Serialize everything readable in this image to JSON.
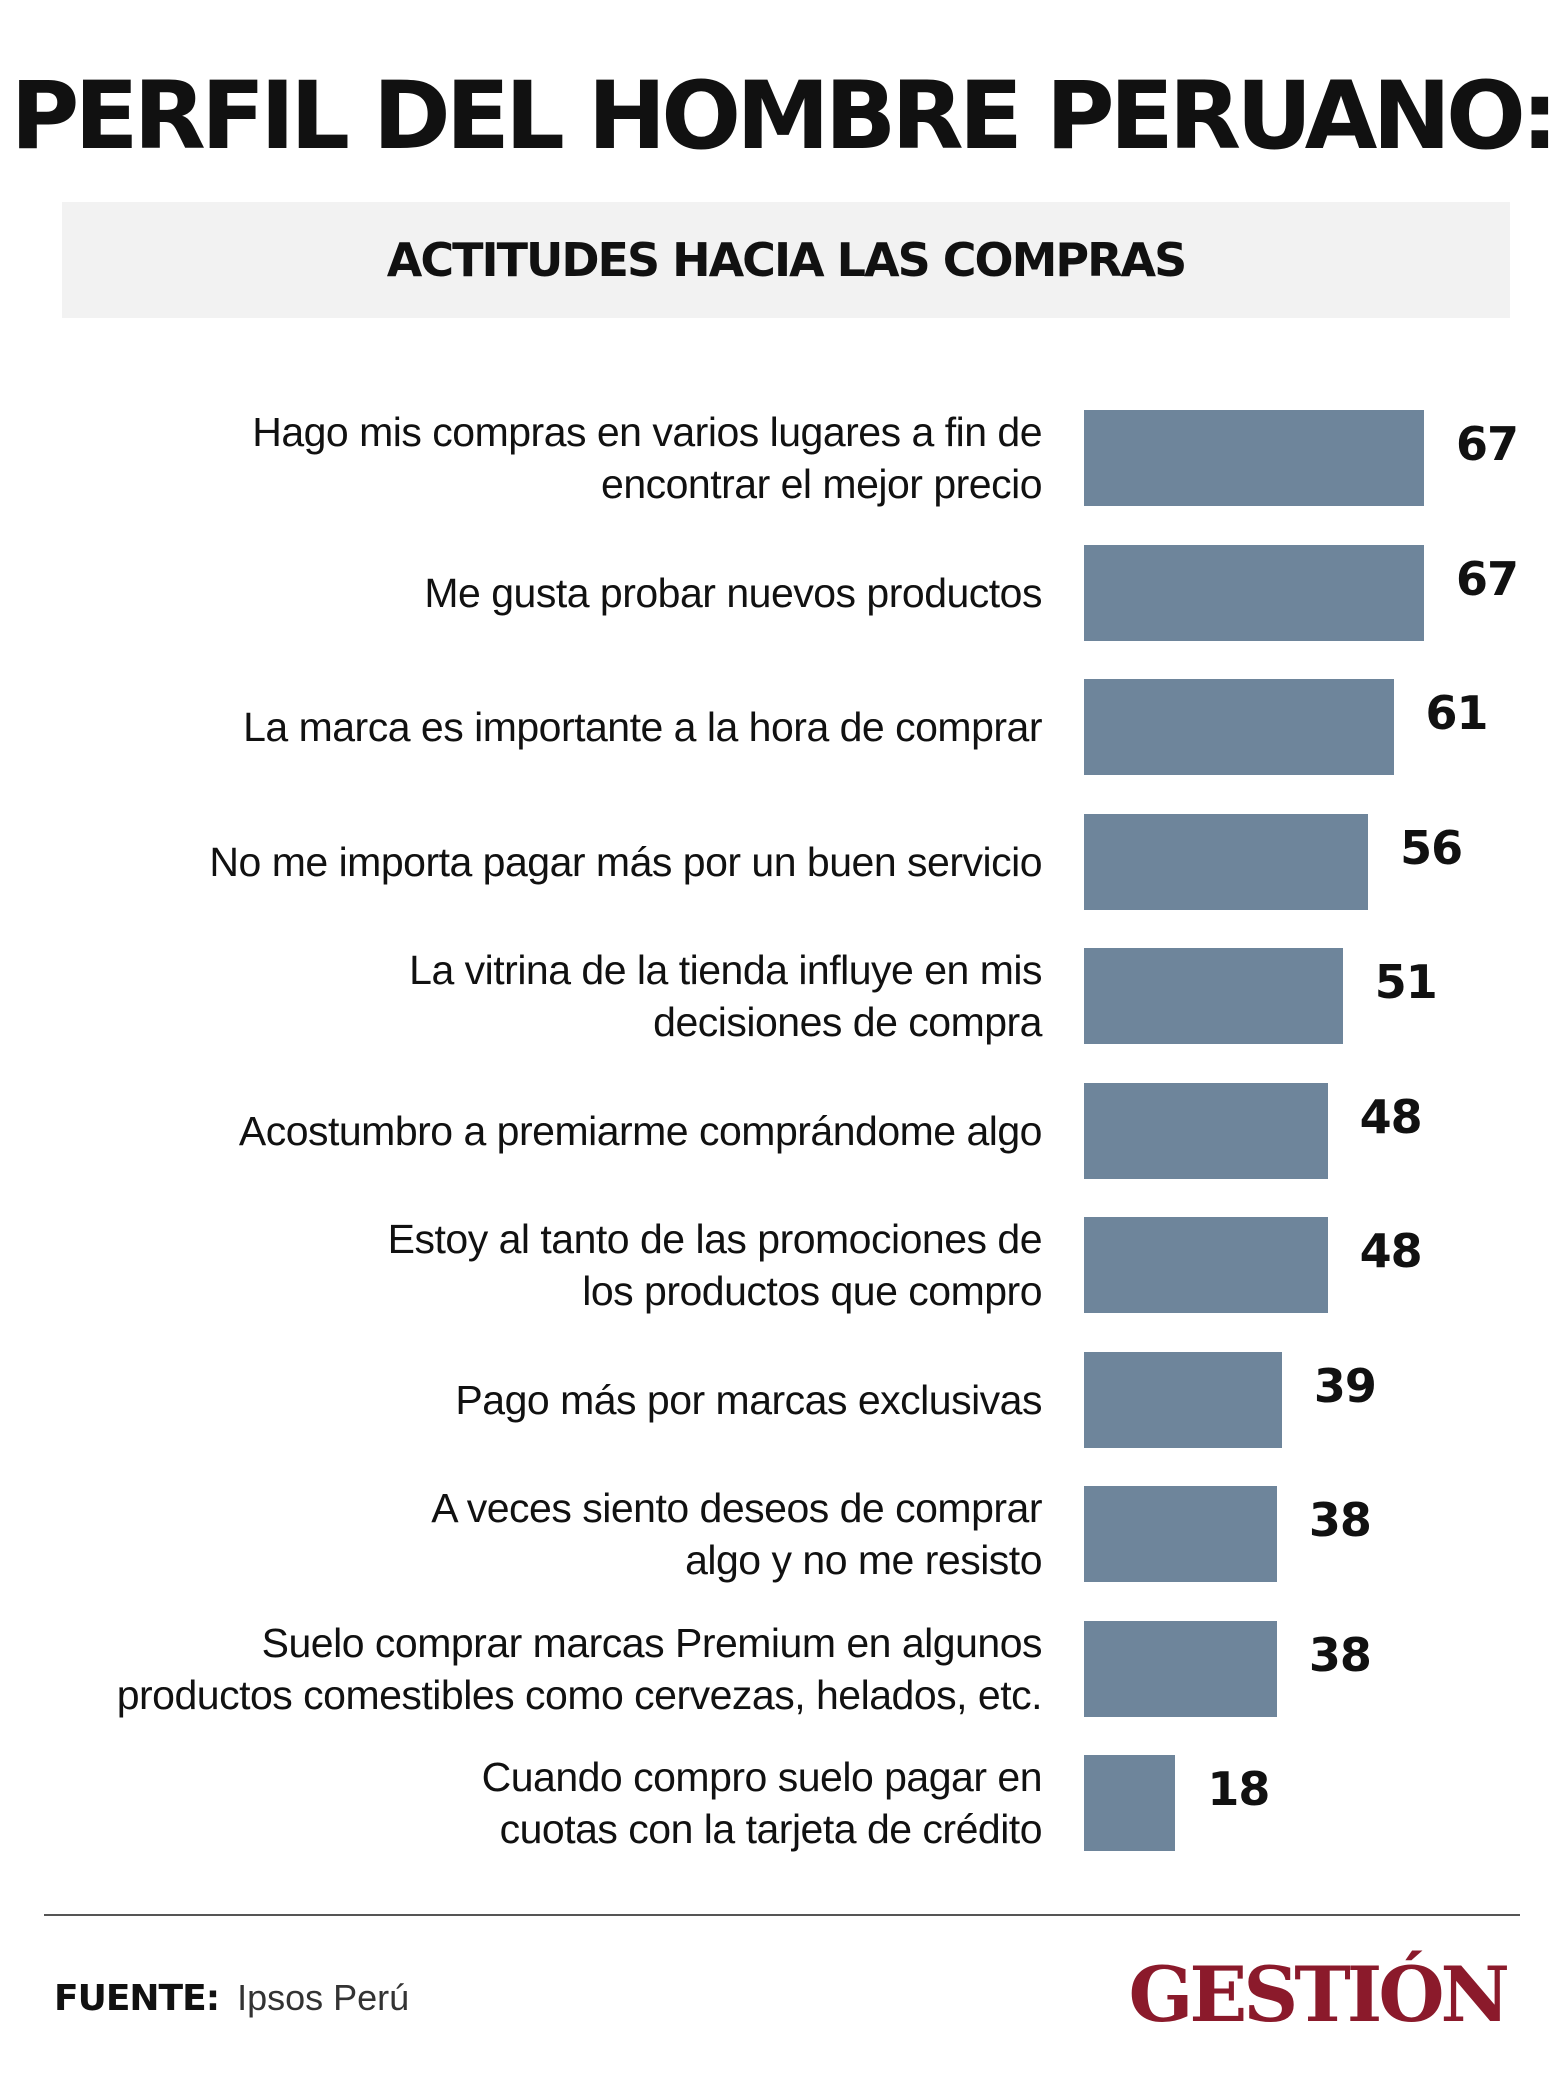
{
  "header": {
    "title": "PERFIL DEL HOMBRE PERUANO:",
    "subtitle": "ACTITUDES HACIA LAS COMPRAS"
  },
  "chart_data": {
    "type": "bar",
    "orientation": "horizontal",
    "title": "ACTITUDES HACIA LAS COMPRAS",
    "categories": [
      "Hago mis compras en varios lugares a fin de\nencontrar el mejor precio",
      "Me gusta probar nuevos productos",
      "La marca es importante a la hora de comprar",
      "No me importa pagar más por un buen servicio",
      "La vitrina de la tienda influye en mis\ndecisiones de compra",
      "Acostumbro a premiarme comprándome algo",
      "Estoy al tanto de las promociones de\nlos productos que compro",
      "Pago más por marcas exclusivas",
      "A veces siento deseos de comprar\nalgo y no me resisto",
      "Suelo comprar marcas Premium en algunos\nproductos comestibles como cervezas, helados, etc.",
      "Cuando compro suelo pagar en\ncuotas con la tarjeta de crédito"
    ],
    "values": [
      67,
      67,
      61,
      56,
      51,
      48,
      48,
      39,
      38,
      38,
      18
    ],
    "bar_color": "#6e859b",
    "grid": false,
    "legend": "none"
  },
  "footer": {
    "source_label": "FUENTE:",
    "source_value": "Ipsos Perú",
    "brand": "GESTIÓN",
    "brand_color": "#8b1a2b"
  }
}
